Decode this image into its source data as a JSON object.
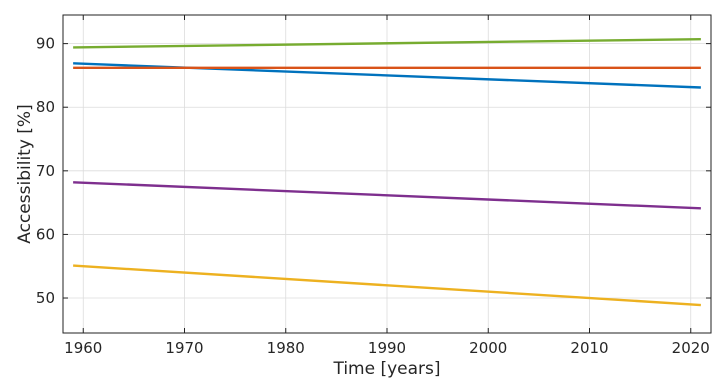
{
  "chart_data": {
    "type": "line",
    "title": "",
    "xlabel": "Time [years]",
    "ylabel": "Accessibility [%]",
    "xlim": [
      1958,
      2022
    ],
    "ylim": [
      44.5,
      94.5
    ],
    "xticks": [
      1960,
      1970,
      1980,
      1990,
      2000,
      2010,
      2020
    ],
    "yticks": [
      50,
      60,
      70,
      80,
      90
    ],
    "grid": true,
    "series": [
      {
        "color": "#77ac30",
        "x": [
          1959,
          2021
        ],
        "y": [
          89.4,
          90.7
        ]
      },
      {
        "color": "#0072bd",
        "x": [
          1959,
          2021
        ],
        "y": [
          86.9,
          83.1
        ]
      },
      {
        "color": "#d95319",
        "x": [
          1959,
          2021
        ],
        "y": [
          86.2,
          86.2
        ]
      },
      {
        "color": "#7e2f8e",
        "x": [
          1959,
          2021
        ],
        "y": [
          68.2,
          64.1
        ]
      },
      {
        "color": "#edb120",
        "x": [
          1959,
          2021
        ],
        "y": [
          55.1,
          48.9
        ]
      }
    ]
  }
}
